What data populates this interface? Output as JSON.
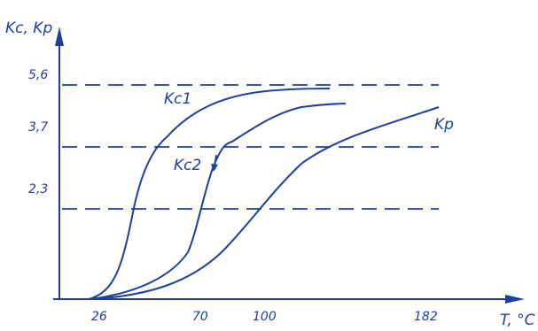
{
  "chart_data": {
    "type": "line",
    "y_axis_label": "Kc, Kp",
    "x_axis_label": "T, °C",
    "x_ticks": [
      "26",
      "70",
      "100",
      "182"
    ],
    "y_ticks": [
      "5,6",
      "3,7",
      "2,3"
    ],
    "reference_lines": [
      5.6,
      3.7,
      2.3
    ],
    "xlim": [
      0,
      210
    ],
    "ylim": [
      0,
      6.2
    ],
    "grid": false,
    "line_color": "#1f3f9e",
    "series": [
      {
        "name": "Kc1",
        "x": [
          26,
          38,
          46,
          52,
          60,
          70,
          85,
          105,
          125,
          140
        ],
        "y": [
          0,
          0.3,
          1.3,
          2.6,
          3.7,
          4.4,
          4.85,
          5.15,
          5.35,
          5.45
        ]
      },
      {
        "name": "Kc2",
        "x": [
          26,
          50,
          65,
          70,
          77,
          86,
          100,
          120,
          140,
          146
        ],
        "y": [
          0,
          0.2,
          0.9,
          2.0,
          3.3,
          3.75,
          4.3,
          4.8,
          5.1,
          5.15
        ]
      },
      {
        "name": "Kp",
        "x": [
          26,
          55,
          75,
          90,
          100,
          115,
          130,
          150,
          170,
          182
        ],
        "y": [
          0,
          0.3,
          0.9,
          1.5,
          2.1,
          2.8,
          3.4,
          3.85,
          4.25,
          4.45
        ]
      }
    ],
    "labels": {
      "Kc1": "Kc1",
      "Kc2": "Kc2",
      "Kp": "Kp"
    }
  }
}
